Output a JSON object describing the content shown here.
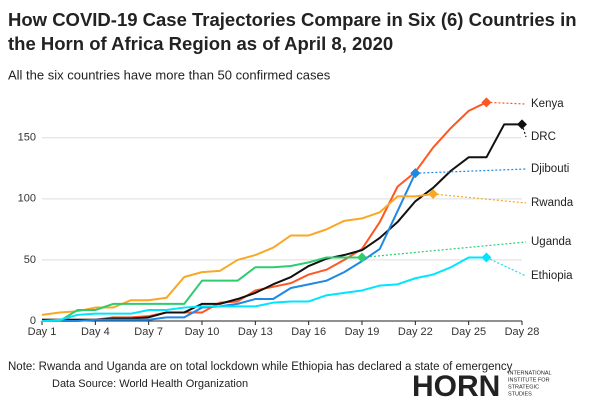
{
  "chart_data": {
    "type": "line",
    "title": "How COVID-19 Case Trajectories Compare in Six (6) Countries in the Horn of Africa Region as of April 8, 2020",
    "subtitle": "All the six countries have more than 50 confirmed cases",
    "note": "Note: Rwanda and Uganda are on total lockdown while Ethiopia has declared a state of emergency",
    "source": "Data Source: World Health Organization",
    "logo": {
      "name": "HORN",
      "subtitle": [
        "INTERNATIONAL",
        "INSTITUTE FOR",
        "STRATEGIC",
        "STUDIES"
      ]
    },
    "x": [
      1,
      2,
      3,
      4,
      5,
      6,
      7,
      8,
      9,
      10,
      11,
      12,
      13,
      14,
      15,
      16,
      17,
      18,
      19,
      20,
      21,
      22,
      23,
      24,
      25,
      26,
      27,
      28
    ],
    "xlim": [
      1,
      28
    ],
    "xticks": [
      {
        "value": 1,
        "label": "Day 1"
      },
      {
        "value": 4,
        "label": "Day 4"
      },
      {
        "value": 7,
        "label": "Day 7"
      },
      {
        "value": 10,
        "label": "Day 10"
      },
      {
        "value": 13,
        "label": "Day 13"
      },
      {
        "value": 16,
        "label": "Day 16"
      },
      {
        "value": 19,
        "label": "Day 19"
      },
      {
        "value": 22,
        "label": "Day 22"
      },
      {
        "value": 25,
        "label": "Day 25"
      },
      {
        "value": 28,
        "label": "Day 28"
      }
    ],
    "ylim": [
      0,
      185
    ],
    "yticks": [
      0,
      50,
      100,
      150
    ],
    "grid": true,
    "series": [
      {
        "name": "Kenya",
        "color": "#ff5722",
        "values": [
          1,
          1,
          1,
          1,
          3,
          3,
          4,
          7,
          7,
          7,
          15,
          16,
          25,
          28,
          31,
          38,
          42,
          50,
          59,
          81,
          110,
          122,
          142,
          158,
          172,
          179,
          null,
          null
        ]
      },
      {
        "name": "DRC",
        "color": "#111111",
        "values": [
          1,
          1,
          1,
          1,
          2,
          2,
          3,
          7,
          7,
          14,
          14,
          18,
          23,
          30,
          36,
          45,
          51,
          54,
          58,
          68,
          81,
          98,
          109,
          123,
          134,
          134,
          161,
          161
        ]
      },
      {
        "name": "Djibouti",
        "color": "#1e88e5",
        "values": [
          0,
          0,
          0,
          1,
          1,
          1,
          1,
          3,
          3,
          11,
          12,
          14,
          18,
          18,
          27,
          30,
          33,
          40,
          49,
          59,
          90,
          121,
          null,
          null,
          null,
          null,
          null,
          null
        ]
      },
      {
        "name": "Rwanda",
        "color": "#f9a825",
        "values": [
          5,
          7,
          8,
          11,
          11,
          17,
          17,
          19,
          36,
          40,
          41,
          50,
          54,
          60,
          70,
          70,
          75,
          82,
          84,
          89,
          102,
          102,
          104,
          null,
          null,
          null,
          null,
          null
        ]
      },
      {
        "name": "Uganda",
        "color": "#2ecc71",
        "values": [
          0,
          0,
          9,
          9,
          14,
          14,
          14,
          14,
          14,
          33,
          33,
          33,
          44,
          44,
          45,
          48,
          52,
          52,
          52,
          null,
          null,
          null,
          null,
          null,
          null,
          null,
          null,
          null
        ]
      },
      {
        "name": "Ethiopia",
        "color": "#00e5ff",
        "values": [
          0,
          1,
          5,
          6,
          6,
          6,
          9,
          9,
          11,
          12,
          12,
          12,
          12,
          15,
          16,
          16,
          21,
          23,
          25,
          29,
          30,
          35,
          38,
          44,
          52,
          52,
          null,
          null
        ]
      }
    ]
  }
}
